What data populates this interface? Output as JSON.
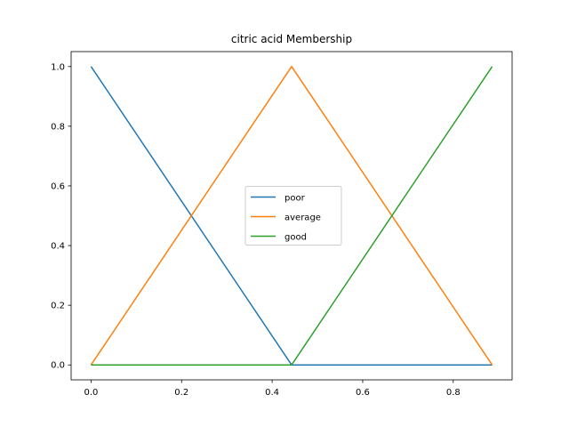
{
  "chart_data": {
    "type": "line",
    "title": "citric acid Membership",
    "xlabel": "",
    "ylabel": "",
    "xlim": [
      -0.044,
      0.93
    ],
    "ylim": [
      -0.05,
      1.05
    ],
    "xticks": [
      0.0,
      0.2,
      0.4,
      0.6,
      0.8
    ],
    "yticks": [
      0.0,
      0.2,
      0.4,
      0.6,
      0.8,
      1.0
    ],
    "xtick_labels": [
      "0.0",
      "0.2",
      "0.4",
      "0.6",
      "0.8"
    ],
    "ytick_labels": [
      "0.0",
      "0.2",
      "0.4",
      "0.6",
      "0.8",
      "1.0"
    ],
    "grid": false,
    "legend_position": "center",
    "series": [
      {
        "name": "poor",
        "color": "#1f77b4",
        "x": [
          0.0,
          0.443,
          0.886
        ],
        "y": [
          1.0,
          0.0,
          0.0
        ]
      },
      {
        "name": "average",
        "color": "#ff7f0e",
        "x": [
          0.0,
          0.443,
          0.886
        ],
        "y": [
          0.0,
          1.0,
          0.0
        ]
      },
      {
        "name": "good",
        "color": "#2ca02c",
        "x": [
          0.0,
          0.443,
          0.886
        ],
        "y": [
          0.0,
          0.0,
          1.0
        ]
      }
    ]
  }
}
